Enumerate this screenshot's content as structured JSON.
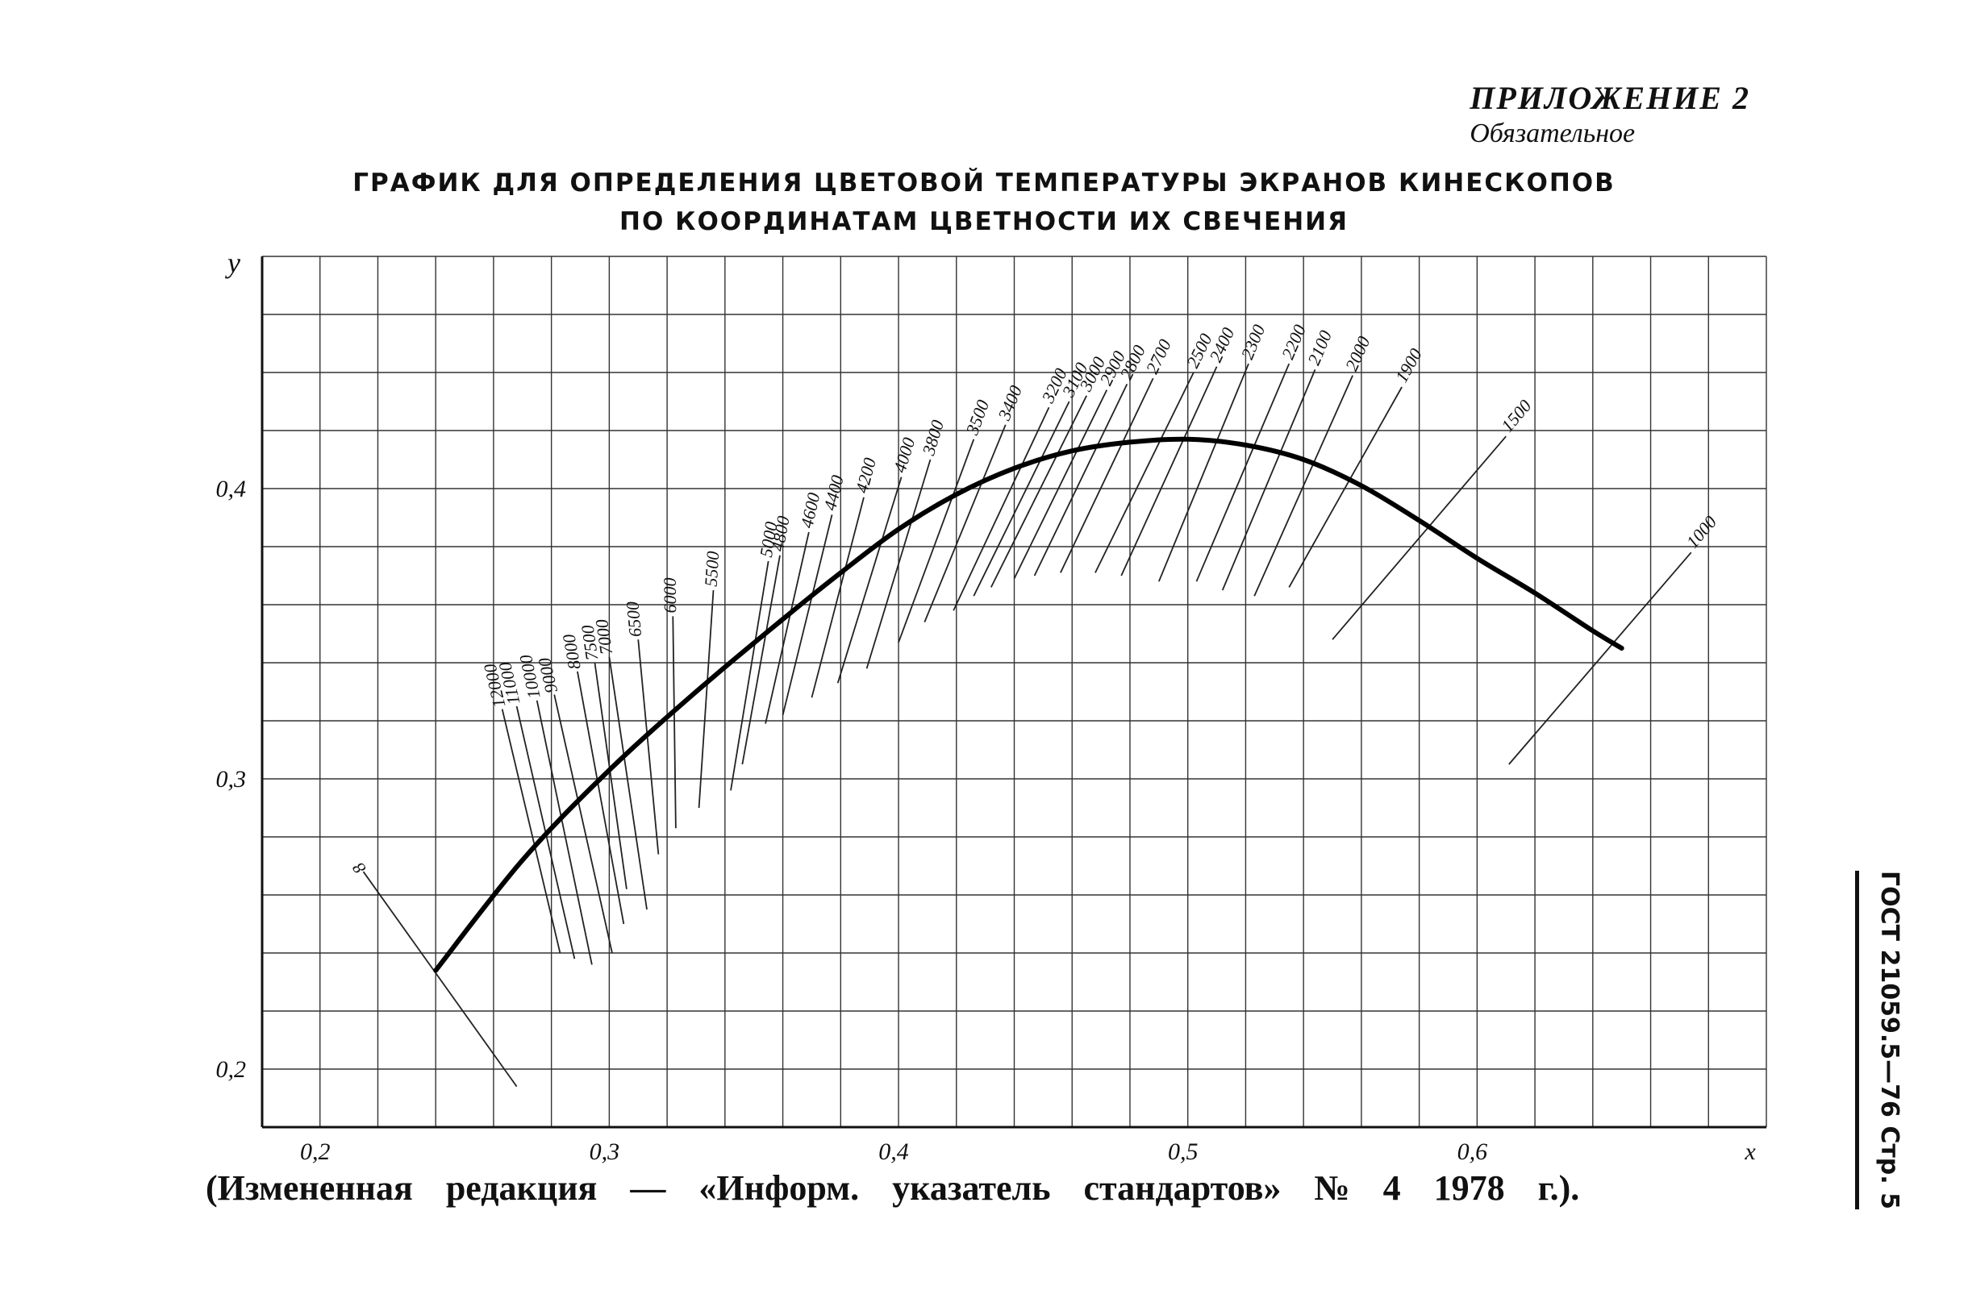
{
  "appendix": {
    "line1": "ПРИЛОЖЕНИЕ 2",
    "line2": "Обязательное"
  },
  "title": {
    "line1": "ГРАФИК ДЛЯ ОПРЕДЕЛЕНИЯ ЦВЕТОВОЙ ТЕМПЕРАТУРЫ ЭКРАНОВ КИНЕСКОПОВ",
    "line2": "ПО КООРДИНАТАМ ЦВЕТНОСТИ ИХ СВЕЧЕНИЯ"
  },
  "footer": {
    "edition_note": "(Измененная редакция — «Информ. указатель стандартов» № 4 1978 г.)."
  },
  "side_label": "ГОСТ 21059.5—76 Стр. 5",
  "chart_data": {
    "type": "line",
    "xlabel": "x",
    "ylabel": "y",
    "xlim": [
      0.18,
      0.7
    ],
    "ylim": [
      0.18,
      0.48
    ],
    "x_ticks": [
      0.2,
      0.3,
      0.4,
      0.5,
      0.6
    ],
    "x_tick_labels": [
      "0,2",
      "0,3",
      "0,4",
      "0,5",
      "0,6"
    ],
    "y_ticks": [
      0.2,
      0.3,
      0.4
    ],
    "y_tick_labels": [
      "0,2",
      "0,3",
      "0,4"
    ],
    "grid": true,
    "grid_step": 0.02,
    "locus": {
      "x": [
        0.24,
        0.27,
        0.3,
        0.33,
        0.36,
        0.38,
        0.4,
        0.42,
        0.44,
        0.46,
        0.48,
        0.5,
        0.52,
        0.54,
        0.56,
        0.58,
        0.6,
        0.62,
        0.64,
        0.65
      ],
      "y": [
        0.234,
        0.272,
        0.303,
        0.33,
        0.355,
        0.371,
        0.386,
        0.398,
        0.407,
        0.413,
        0.416,
        0.417,
        0.415,
        0.41,
        0.401,
        0.389,
        0.376,
        0.364,
        0.351,
        0.345
      ]
    },
    "isotemperature_lines": [
      {
        "label": "12000",
        "x1": 0.263,
        "y1": 0.324,
        "x2": 0.283,
        "y2": 0.24
      },
      {
        "label": "11000",
        "x1": 0.268,
        "y1": 0.325,
        "x2": 0.288,
        "y2": 0.238
      },
      {
        "label": "10000",
        "x1": 0.275,
        "y1": 0.327,
        "x2": 0.294,
        "y2": 0.236
      },
      {
        "label": "9000",
        "x1": 0.281,
        "y1": 0.329,
        "x2": 0.301,
        "y2": 0.24
      },
      {
        "label": "8000",
        "x1": 0.289,
        "y1": 0.337,
        "x2": 0.305,
        "y2": 0.25
      },
      {
        "label": "7500",
        "x1": 0.295,
        "y1": 0.34,
        "x2": 0.306,
        "y2": 0.262
      },
      {
        "label": "7000",
        "x1": 0.3,
        "y1": 0.342,
        "x2": 0.313,
        "y2": 0.255
      },
      {
        "label": "6500",
        "x1": 0.31,
        "y1": 0.348,
        "x2": 0.317,
        "y2": 0.274
      },
      {
        "label": "6000",
        "x1": 0.322,
        "y1": 0.356,
        "x2": 0.323,
        "y2": 0.283
      },
      {
        "label": "5500",
        "x1": 0.336,
        "y1": 0.365,
        "x2": 0.331,
        "y2": 0.29
      },
      {
        "label": "5000",
        "x1": 0.355,
        "y1": 0.375,
        "x2": 0.342,
        "y2": 0.296
      },
      {
        "label": "4800",
        "x1": 0.359,
        "y1": 0.377,
        "x2": 0.346,
        "y2": 0.305
      },
      {
        "label": "4600",
        "x1": 0.369,
        "y1": 0.385,
        "x2": 0.354,
        "y2": 0.319
      },
      {
        "label": "4400",
        "x1": 0.377,
        "y1": 0.391,
        "x2": 0.36,
        "y2": 0.322
      },
      {
        "label": "4200",
        "x1": 0.388,
        "y1": 0.397,
        "x2": 0.37,
        "y2": 0.328
      },
      {
        "label": "4000",
        "x1": 0.401,
        "y1": 0.404,
        "x2": 0.379,
        "y2": 0.333
      },
      {
        "label": "3800",
        "x1": 0.411,
        "y1": 0.41,
        "x2": 0.389,
        "y2": 0.338
      },
      {
        "label": "3500",
        "x1": 0.426,
        "y1": 0.417,
        "x2": 0.4,
        "y2": 0.347
      },
      {
        "label": "3400",
        "x1": 0.437,
        "y1": 0.422,
        "x2": 0.409,
        "y2": 0.354
      },
      {
        "label": "3200",
        "x1": 0.452,
        "y1": 0.428,
        "x2": 0.419,
        "y2": 0.358
      },
      {
        "label": "3100",
        "x1": 0.459,
        "y1": 0.43,
        "x2": 0.426,
        "y2": 0.363
      },
      {
        "label": "3000",
        "x1": 0.465,
        "y1": 0.432,
        "x2": 0.432,
        "y2": 0.366
      },
      {
        "label": "2900",
        "x1": 0.472,
        "y1": 0.434,
        "x2": 0.44,
        "y2": 0.369
      },
      {
        "label": "2800",
        "x1": 0.479,
        "y1": 0.436,
        "x2": 0.447,
        "y2": 0.37
      },
      {
        "label": "2700",
        "x1": 0.488,
        "y1": 0.438,
        "x2": 0.456,
        "y2": 0.371
      },
      {
        "label": "2500",
        "x1": 0.502,
        "y1": 0.44,
        "x2": 0.468,
        "y2": 0.371
      },
      {
        "label": "2400",
        "x1": 0.51,
        "y1": 0.442,
        "x2": 0.477,
        "y2": 0.37
      },
      {
        "label": "2300",
        "x1": 0.521,
        "y1": 0.443,
        "x2": 0.49,
        "y2": 0.368
      },
      {
        "label": "2200",
        "x1": 0.535,
        "y1": 0.443,
        "x2": 0.503,
        "y2": 0.368
      },
      {
        "label": "2100",
        "x1": 0.544,
        "y1": 0.441,
        "x2": 0.512,
        "y2": 0.365
      },
      {
        "label": "2000",
        "x1": 0.557,
        "y1": 0.439,
        "x2": 0.523,
        "y2": 0.363
      },
      {
        "label": "1900",
        "x1": 0.574,
        "y1": 0.435,
        "x2": 0.535,
        "y2": 0.366
      },
      {
        "label": "1500",
        "x1": 0.61,
        "y1": 0.418,
        "x2": 0.55,
        "y2": 0.348
      },
      {
        "label": "1000",
        "x1": 0.674,
        "y1": 0.378,
        "x2": 0.611,
        "y2": 0.305
      },
      {
        "label": "8",
        "x1": 0.215,
        "y1": 0.268,
        "x2": 0.268,
        "y2": 0.194
      }
    ]
  }
}
